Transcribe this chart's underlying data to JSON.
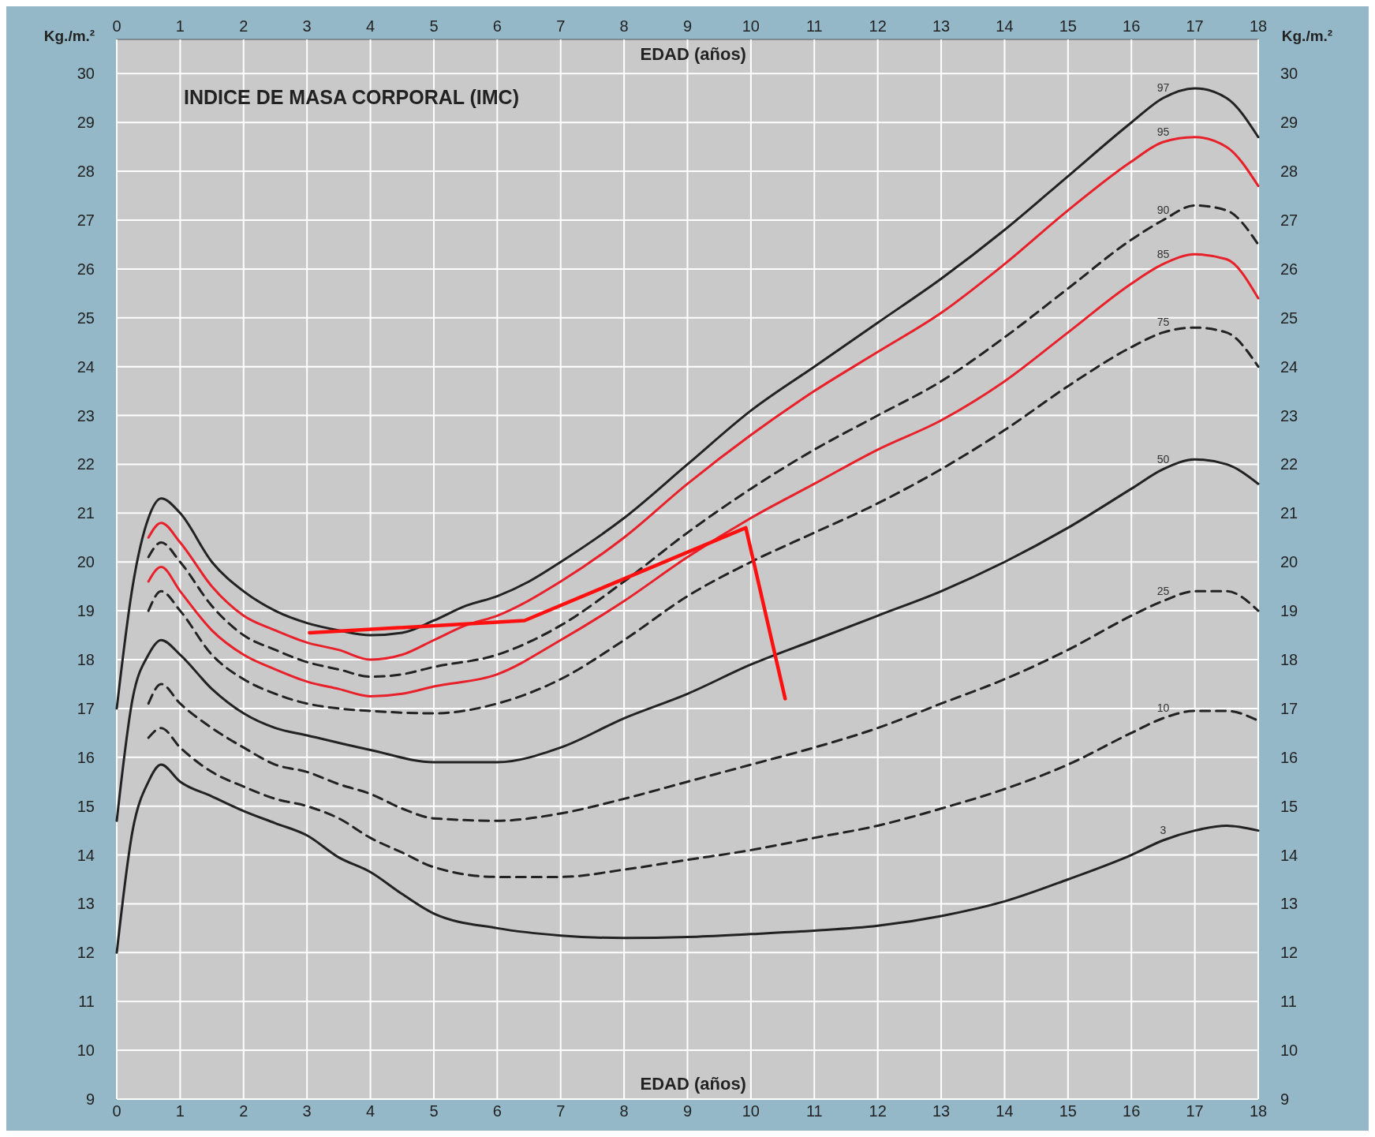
{
  "chart_data": {
    "type": "line",
    "title": "INDICE DE MASA CORPORAL (IMC)",
    "xlabel": "EDAD (años)",
    "x2label": "EDAD (años)",
    "ylabel": "Kg./m.²",
    "y2label": "Kg./m.²",
    "xlim": [
      0,
      18
    ],
    "xticks": [
      0,
      1,
      2,
      3,
      4,
      5,
      6,
      7,
      8,
      9,
      10,
      11,
      12,
      13,
      14,
      15,
      16,
      17,
      18
    ],
    "x2lim": [
      0,
      18
    ],
    "x2ticks": [
      0,
      1,
      2,
      3,
      4,
      5,
      6,
      7,
      8,
      9,
      10,
      11,
      12,
      13,
      14,
      15,
      16,
      17,
      18
    ],
    "ylim": [
      9,
      30.7
    ],
    "yticks": [
      9,
      10,
      11,
      12,
      13,
      14,
      15,
      16,
      17,
      18,
      19,
      20,
      21,
      22,
      23,
      24,
      25,
      26,
      27,
      28,
      29,
      30
    ],
    "y2lim": [
      9,
      30.7
    ],
    "y2ticks": [
      9,
      10,
      11,
      12,
      13,
      14,
      15,
      16,
      17,
      18,
      19,
      20,
      21,
      22,
      23,
      24,
      25,
      26,
      27,
      28,
      29,
      30
    ],
    "grid": true,
    "series": [
      {
        "name": "97",
        "color": "#222222",
        "line_style": "solid",
        "x": [
          0,
          0.25,
          0.5,
          0.7,
          1,
          1.5,
          2,
          2.5,
          3,
          3.5,
          4,
          4.5,
          5,
          5.5,
          6,
          6.5,
          7,
          8,
          9,
          10,
          11,
          12,
          13,
          14,
          15,
          16,
          16.5,
          17,
          17.5,
          18
        ],
        "values": [
          17.0,
          19.5,
          20.9,
          21.3,
          21.0,
          20.0,
          19.4,
          19.0,
          18.75,
          18.6,
          18.5,
          18.55,
          18.8,
          19.1,
          19.3,
          19.6,
          20.0,
          20.9,
          22.0,
          23.1,
          24.0,
          24.9,
          25.8,
          26.8,
          27.9,
          29.0,
          29.5,
          29.7,
          29.5,
          28.7
        ]
      },
      {
        "name": "95",
        "color": "#e8202a",
        "line_style": "solid",
        "x": [
          0.5,
          0.7,
          1,
          1.5,
          2,
          2.5,
          3,
          3.5,
          4,
          4.5,
          5,
          5.5,
          6,
          7,
          8,
          9,
          10,
          11,
          12,
          13,
          14,
          15,
          16,
          16.5,
          17,
          17.5,
          18
        ],
        "values": [
          20.5,
          20.8,
          20.4,
          19.5,
          18.9,
          18.6,
          18.35,
          18.2,
          18.0,
          18.1,
          18.4,
          18.7,
          18.9,
          19.6,
          20.5,
          21.6,
          22.6,
          23.5,
          24.3,
          25.1,
          26.1,
          27.2,
          28.2,
          28.6,
          28.7,
          28.5,
          27.7
        ]
      },
      {
        "name": "90",
        "color": "#222222",
        "line_style": "dashed",
        "x": [
          0.5,
          0.7,
          1,
          1.5,
          2,
          2.5,
          3,
          3.5,
          4,
          4.5,
          5,
          6,
          7,
          8,
          9,
          10,
          11,
          12,
          13,
          14,
          15,
          16,
          16.5,
          17,
          17.5,
          18
        ],
        "values": [
          20.1,
          20.4,
          20.0,
          19.1,
          18.5,
          18.2,
          17.95,
          17.8,
          17.65,
          17.7,
          17.85,
          18.1,
          18.7,
          19.6,
          20.6,
          21.5,
          22.3,
          23.0,
          23.7,
          24.6,
          25.6,
          26.6,
          27.0,
          27.3,
          27.2,
          26.5
        ]
      },
      {
        "name": "85",
        "color": "#e8202a",
        "line_style": "solid",
        "x": [
          0.5,
          0.7,
          1,
          1.5,
          2,
          2.5,
          3,
          3.5,
          4,
          4.5,
          5,
          6,
          7,
          8,
          9,
          10,
          11,
          12,
          13,
          14,
          15,
          16,
          16.5,
          17,
          17.5,
          18
        ],
        "values": [
          19.6,
          19.9,
          19.4,
          18.6,
          18.1,
          17.8,
          17.55,
          17.4,
          17.25,
          17.3,
          17.45,
          17.7,
          18.4,
          19.2,
          20.1,
          20.9,
          21.6,
          22.3,
          22.9,
          23.7,
          24.7,
          25.7,
          26.1,
          26.3,
          26.2,
          25.4
        ]
      },
      {
        "name": "75",
        "color": "#222222",
        "line_style": "dashed",
        "x": [
          0.5,
          0.7,
          1,
          1.5,
          2,
          2.5,
          3,
          3.5,
          4,
          5,
          6,
          7,
          8,
          9,
          10,
          11,
          12,
          13,
          14,
          15,
          16,
          16.5,
          17,
          17.5,
          18
        ],
        "values": [
          19.0,
          19.4,
          19.0,
          18.1,
          17.6,
          17.3,
          17.1,
          17.0,
          16.95,
          16.9,
          17.1,
          17.6,
          18.4,
          19.3,
          20.0,
          20.6,
          21.2,
          21.9,
          22.7,
          23.6,
          24.4,
          24.7,
          24.8,
          24.7,
          24.0
        ]
      },
      {
        "name": "50",
        "color": "#222222",
        "line_style": "solid",
        "x": [
          0,
          0.25,
          0.5,
          0.7,
          1,
          1.5,
          2,
          2.5,
          3,
          4,
          5,
          6,
          7,
          8,
          9,
          10,
          11,
          12,
          13,
          14,
          15,
          16,
          16.5,
          17,
          17.5,
          18
        ],
        "values": [
          14.7,
          17.2,
          18.1,
          18.4,
          18.1,
          17.4,
          16.9,
          16.6,
          16.45,
          16.15,
          15.9,
          15.9,
          16.2,
          16.8,
          17.3,
          17.9,
          18.4,
          18.9,
          19.4,
          20.0,
          20.7,
          21.5,
          21.9,
          22.1,
          22.0,
          21.6
        ]
      },
      {
        "name": "25",
        "color": "#222222",
        "line_style": "dashed",
        "x": [
          0.5,
          0.7,
          1,
          1.5,
          2,
          2.5,
          3,
          3.5,
          4,
          4.5,
          5,
          6,
          7,
          8,
          9,
          10,
          11,
          12,
          13,
          14,
          15,
          16,
          16.5,
          17,
          17.5,
          18
        ],
        "values": [
          17.1,
          17.5,
          17.1,
          16.6,
          16.2,
          15.85,
          15.7,
          15.45,
          15.25,
          14.95,
          14.75,
          14.7,
          14.85,
          15.15,
          15.5,
          15.85,
          16.2,
          16.6,
          17.1,
          17.6,
          18.2,
          18.9,
          19.2,
          19.4,
          19.4,
          19.0
        ]
      },
      {
        "name": "10",
        "color": "#222222",
        "line_style": "dashed",
        "x": [
          0.5,
          0.7,
          1,
          1.5,
          2,
          2.5,
          3,
          3.5,
          4,
          4.5,
          5,
          6,
          7,
          8,
          9,
          10,
          11,
          12,
          13,
          14,
          15,
          16,
          16.5,
          17,
          17.5,
          18
        ],
        "values": [
          16.4,
          16.6,
          16.2,
          15.7,
          15.4,
          15.15,
          15.0,
          14.75,
          14.35,
          14.05,
          13.75,
          13.55,
          13.55,
          13.7,
          13.9,
          14.1,
          14.35,
          14.6,
          14.95,
          15.35,
          15.85,
          16.5,
          16.8,
          16.95,
          16.95,
          16.75
        ]
      },
      {
        "name": "3",
        "color": "#222222",
        "line_style": "solid",
        "x": [
          0,
          0.25,
          0.5,
          0.7,
          1,
          1.5,
          2,
          2.5,
          3,
          3.5,
          4,
          4.5,
          5,
          6,
          7,
          8,
          9,
          10,
          11,
          12,
          13,
          14,
          15,
          16,
          16.5,
          17,
          17.5,
          18
        ],
        "values": [
          12.0,
          14.5,
          15.5,
          15.85,
          15.5,
          15.2,
          14.9,
          14.65,
          14.4,
          13.95,
          13.65,
          13.2,
          12.8,
          12.5,
          12.35,
          12.3,
          12.32,
          12.38,
          12.45,
          12.55,
          12.75,
          13.05,
          13.5,
          14.0,
          14.3,
          14.5,
          14.6,
          14.5
        ]
      },
      {
        "color": "#ff1010",
        "line_style": "solid",
        "x": [
          3.04,
          6.43,
          9.92,
          10.54
        ],
        "values": [
          18.55,
          18.8,
          20.7,
          17.2
        ]
      }
    ]
  }
}
